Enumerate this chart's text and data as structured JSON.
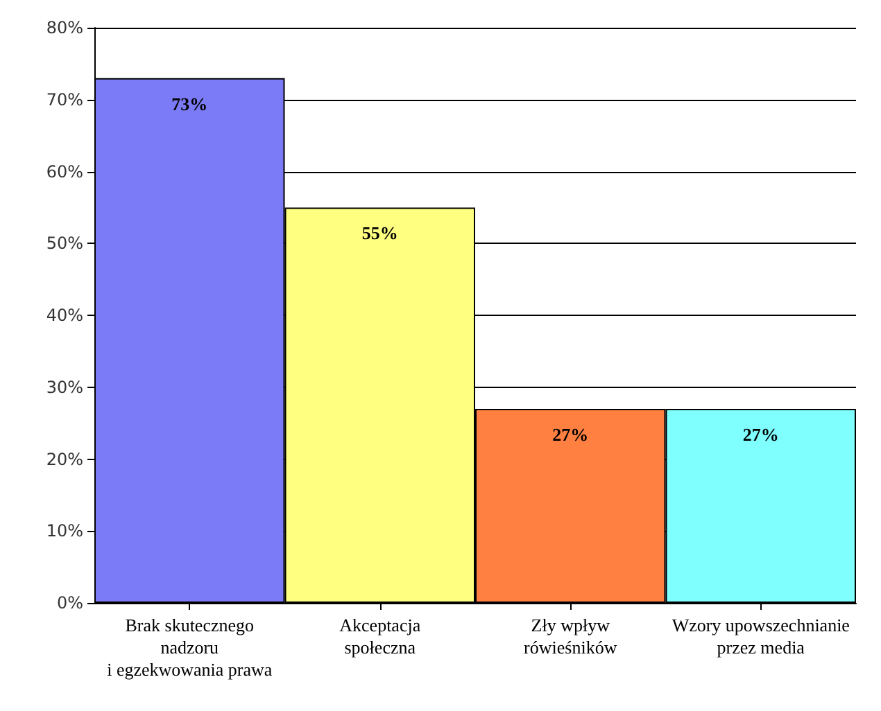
{
  "chart_data": {
    "type": "bar",
    "categories": [
      "Brak skutecznego\nnadzoru\ni egzekwowania prawa",
      "Akceptacja\nspołeczna",
      "Zły wpływ\nrówieśników",
      "Wzory upowszechnianie\nprzez media"
    ],
    "values": [
      73,
      55,
      27,
      27
    ],
    "colors": [
      "#7b7bf7",
      "#ffff80",
      "#ff8040",
      "#80ffff"
    ],
    "value_labels": [
      "73%",
      "55%",
      "27%",
      "27%"
    ],
    "ylim": [
      0,
      80
    ],
    "yticks": [
      {
        "value": 0,
        "label": "0%"
      },
      {
        "value": 10,
        "label": "10%"
      },
      {
        "value": 20,
        "label": "20%"
      },
      {
        "value": 30,
        "label": "30%"
      },
      {
        "value": 40,
        "label": "40%"
      },
      {
        "value": 50,
        "label": "50%"
      },
      {
        "value": 60,
        "label": "60%"
      },
      {
        "value": 70,
        "label": "70%"
      },
      {
        "value": 80,
        "label": "80%"
      }
    ],
    "grid": "y"
  }
}
